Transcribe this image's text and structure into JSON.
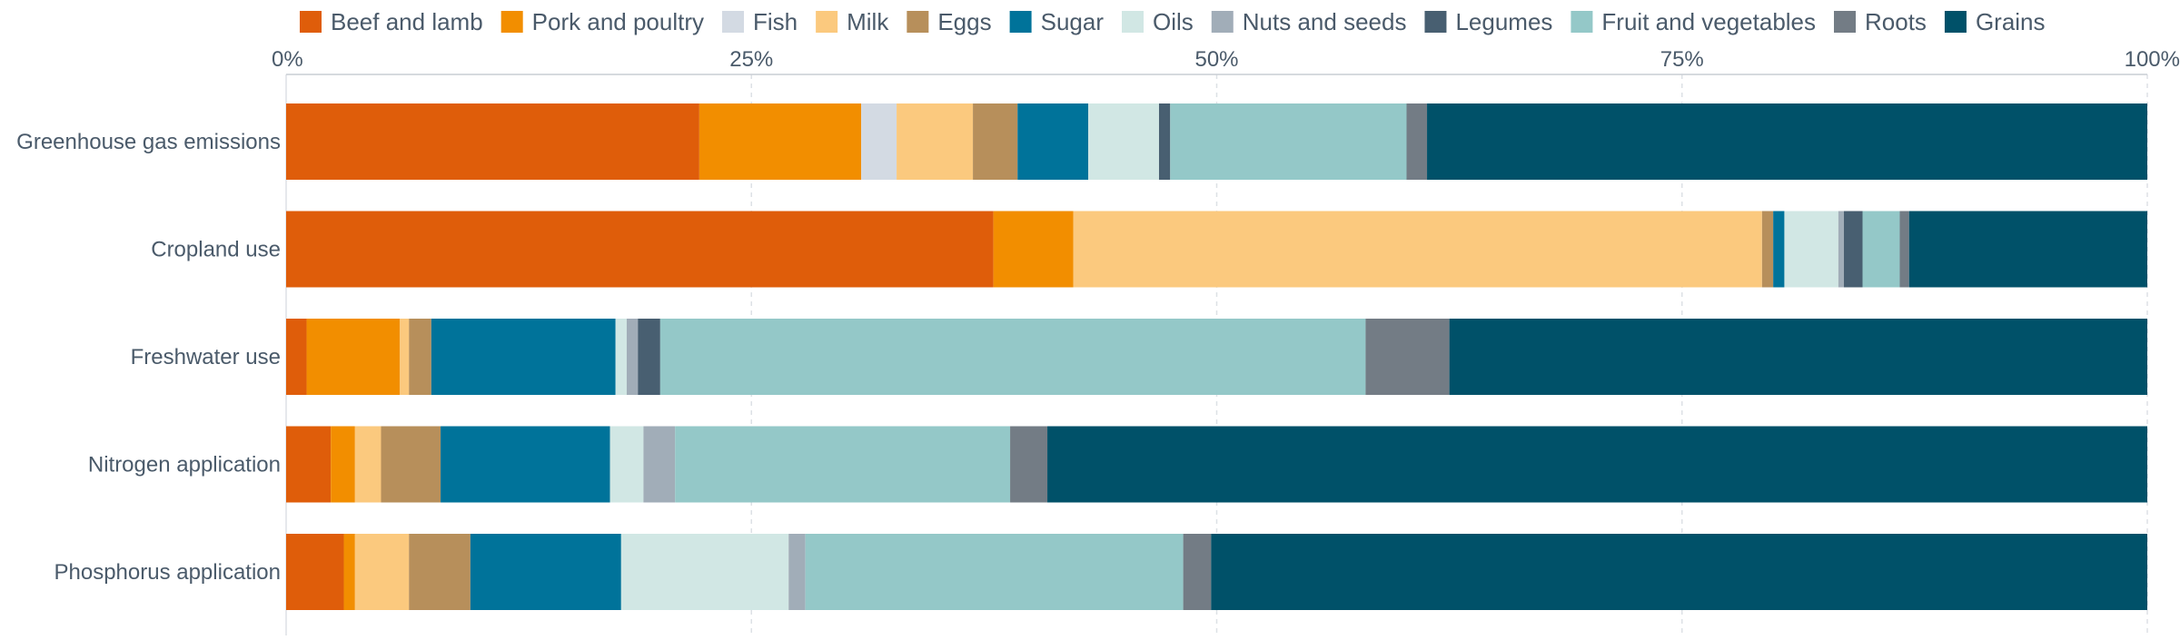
{
  "chart_data": {
    "type": "bar",
    "orientation": "horizontal",
    "stacked": "percent",
    "title": "",
    "xlabel": "",
    "ylabel": "",
    "xlim": [
      0,
      100
    ],
    "x_ticks": [
      "0%",
      "25%",
      "50%",
      "75%",
      "100%"
    ],
    "x_tick_values": [
      0,
      25,
      50,
      75,
      100
    ],
    "grid": true,
    "legend_position": "top",
    "categories": [
      "Greenhouse gas emissions",
      "Cropland use",
      "Freshwater use",
      "Nitrogen application",
      "Phosphorus application"
    ],
    "series": [
      {
        "name": "Beef and lamb",
        "color": "#df5d0a",
        "values": [
          22.2,
          38.0,
          1.1,
          2.4,
          3.1
        ]
      },
      {
        "name": "Pork and poultry",
        "color": "#f28e00",
        "values": [
          8.7,
          4.3,
          5.0,
          1.3,
          0.6
        ]
      },
      {
        "name": "Fish",
        "color": "#d3dae3",
        "values": [
          1.9,
          0.0,
          0.0,
          0.0,
          0.0
        ]
      },
      {
        "name": "Milk",
        "color": "#fbc97e",
        "values": [
          4.1,
          37.0,
          0.5,
          1.4,
          2.9
        ]
      },
      {
        "name": "Eggs",
        "color": "#b78f5b",
        "values": [
          2.4,
          0.6,
          1.2,
          3.2,
          3.3
        ]
      },
      {
        "name": "Sugar",
        "color": "#00739a",
        "values": [
          3.8,
          0.6,
          9.9,
          9.1,
          8.1
        ]
      },
      {
        "name": "Oils",
        "color": "#d1e7e4",
        "values": [
          3.8,
          2.9,
          0.6,
          1.8,
          9.0
        ]
      },
      {
        "name": "Nuts and seeds",
        "color": "#a1adb8",
        "values": [
          0.0,
          0.3,
          0.6,
          1.7,
          0.9
        ]
      },
      {
        "name": "Legumes",
        "color": "#485f71",
        "values": [
          0.6,
          1.0,
          1.2,
          0.0,
          0.0
        ]
      },
      {
        "name": "Fruit and vegetables",
        "color": "#94c8c8",
        "values": [
          12.7,
          2.0,
          37.9,
          18.0,
          20.3
        ]
      },
      {
        "name": "Roots",
        "color": "#737c85",
        "values": [
          1.1,
          0.5,
          4.5,
          2.0,
          1.5
        ]
      },
      {
        "name": "Grains",
        "color": "#005169",
        "values": [
          38.7,
          12.8,
          37.5,
          59.1,
          50.3
        ]
      }
    ]
  }
}
